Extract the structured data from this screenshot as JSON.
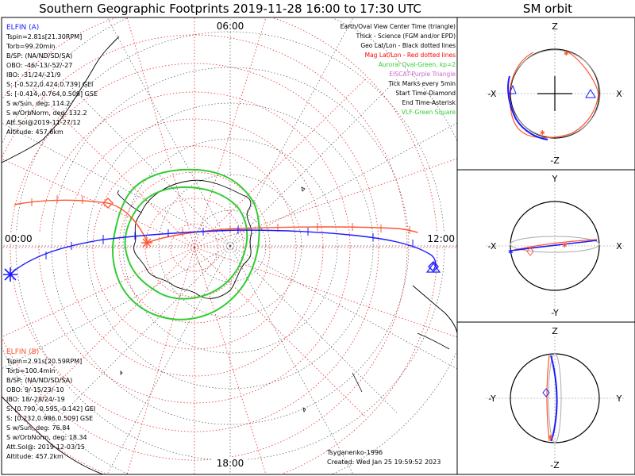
{
  "header": {
    "title": "Southern Geographic Footprints 2019-11-28 16:00 to 17:30 UTC",
    "orbit_title": "SM orbit"
  },
  "time_labels": {
    "top": "06:00",
    "left": "00:00",
    "right": "12:00",
    "bottom": "18:00"
  },
  "elfin_a": {
    "name": "ELFIN (A)",
    "color": "#1a1aff",
    "lines": [
      "Tspin=2.81s[21.30RPM]",
      "Torb=99.20min",
      "B/SP: (NA/ND/SD/SA)",
      "OBO: -46/-13/-52/-27",
      "IBO: -31/24/-21/9",
      "S: [-0.522,0.424,0.739] GEI",
      "S: [-0.414,-0.764,0.509] GSE",
      "S w/Sun, deg: 114.2",
      "S w/OrbNorm, deg: 132.2",
      "Att.Sol@2019-11-27/12",
      "Altitude: 457.6km"
    ]
  },
  "elfin_b": {
    "name": "ELFIN (B)",
    "color": "#ff5533",
    "lines": [
      "Tspin=2.91s[20.59RPM]",
      "Torb=100.4min",
      "B/SP: (NA/ND/SD/SA)",
      "OBO: 9/-15/23/-10",
      "IBO: 18/-28/24/-19",
      "S: [0.790,-0.595,-0.142] GEI",
      "S: [0.232,0.986,0.509] GSE",
      "S w/Sun, deg: 76.84",
      "S w/OrbNorm, deg: 18.34",
      "Att.Sol@: 2019-12-03/15",
      "Altitude: 457.2km"
    ]
  },
  "legend": [
    {
      "text": "Earth/Oval View Center Time (triangle)",
      "color": "#000000"
    },
    {
      "text": "Thick - Science (FGM and/or EPD)",
      "color": "#000000"
    },
    {
      "text": "Geo Lat/Lon - Black dotted lines",
      "color": "#000000"
    },
    {
      "text": "Mag Lat/Lon - Red dotted lines",
      "color": "#ff0000"
    },
    {
      "text": "Auroral Oval-Green, kp=2",
      "color": "#33cc33"
    },
    {
      "text": "EISCAT-Purple Triangle",
      "color": "#cc66cc"
    },
    {
      "text": "Tick Marks every 5min",
      "color": "#000000"
    },
    {
      "text": "Start Time-Diamond",
      "color": "#000000"
    },
    {
      "text": "End Time-Asterisk",
      "color": "#000000"
    },
    {
      "text": "VLF-Green Square",
      "color": "#33cc33"
    }
  ],
  "footer": {
    "credit": "Tsyganenko-1996",
    "created": "Created: Wed Jan 25 19:59:52 2023"
  },
  "orbit_panels": [
    {
      "top": "Z",
      "bottom": "-Z",
      "left": "-X",
      "right": "X"
    },
    {
      "top": "Y",
      "bottom": "-Y",
      "left": "-X",
      "right": "X"
    },
    {
      "top": "Z",
      "bottom": "-Z",
      "left": "-Y",
      "right": "Y"
    }
  ],
  "chart_data": {
    "type": "polar-map",
    "projection": "southern polar stereographic",
    "time_range": "2019-11-28 16:00 to 17:30 UTC",
    "series": [
      {
        "name": "ELFIN (A)",
        "color": "#1a1aff"
      },
      {
        "name": "ELFIN (B)",
        "color": "#ff5533"
      }
    ]
  }
}
